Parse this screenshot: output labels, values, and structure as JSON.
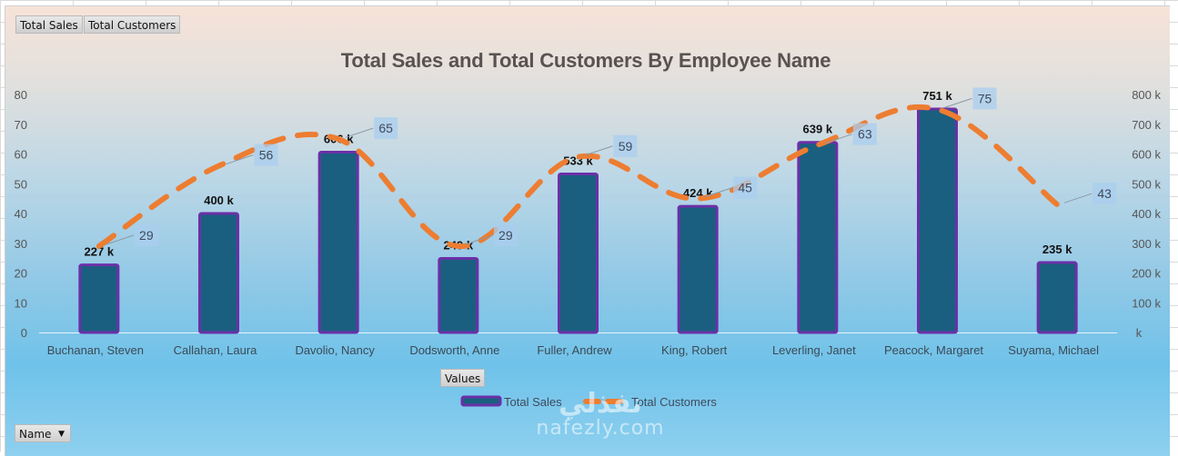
{
  "pivot_buttons": {
    "values_fields": [
      "Total Sales",
      "Total Customers"
    ],
    "values_area": "Values",
    "axis_field": "Name",
    "axis_field_dropdown_icon": "triangle-down"
  },
  "watermark": {
    "arabic": "نفذلي",
    "latin": "nafezly.com"
  },
  "chart_data": {
    "type": "bar",
    "title": "Total Sales and Total Customers By Employee Name",
    "xlabel": "",
    "ylabel": "",
    "categories": [
      "Buchanan, Steven",
      "Callahan, Laura",
      "Davolio, Nancy",
      "Dodsworth, Anne",
      "Fuller, Andrew",
      "King, Robert",
      "Leverling, Janet",
      "Peacock, Margaret",
      "Suyama, Michael"
    ],
    "series": [
      {
        "name": "Total Sales",
        "type": "bar",
        "axis": "secondary",
        "values": [
          227000,
          400000,
          606000,
          249000,
          533000,
          424000,
          639000,
          751000,
          235000
        ],
        "data_labels": [
          "227 k",
          "400 k",
          "606 k",
          "249 k",
          "533 k",
          "424 k",
          "639 k",
          "751 k",
          "235 k"
        ],
        "color": "#1a5f80",
        "border_color": "#6b30a8"
      },
      {
        "name": "Total Customers",
        "type": "line",
        "style": "dashed",
        "axis": "primary",
        "values": [
          29,
          56,
          65,
          29,
          59,
          45,
          63,
          75,
          43
        ],
        "data_labels": [
          "29",
          "56",
          "65",
          "29",
          "59",
          "45",
          "63",
          "75",
          "43"
        ],
        "color": "#ed7d31"
      }
    ],
    "primary_axis": {
      "ylim": [
        0,
        80
      ],
      "ticks": [
        "0",
        "10",
        "20",
        "30",
        "40",
        "50",
        "60",
        "70",
        "80"
      ],
      "position": "left"
    },
    "secondary_axis": {
      "ylim": [
        0,
        800000
      ],
      "ticks": [
        "k",
        "100 k",
        "200 k",
        "300 k",
        "400 k",
        "500 k",
        "600 k",
        "700 k",
        "800 k"
      ],
      "position": "right"
    },
    "grid": false,
    "legend": {
      "position": "bottom",
      "entries": [
        "Total Sales",
        "Total Customers"
      ]
    }
  }
}
